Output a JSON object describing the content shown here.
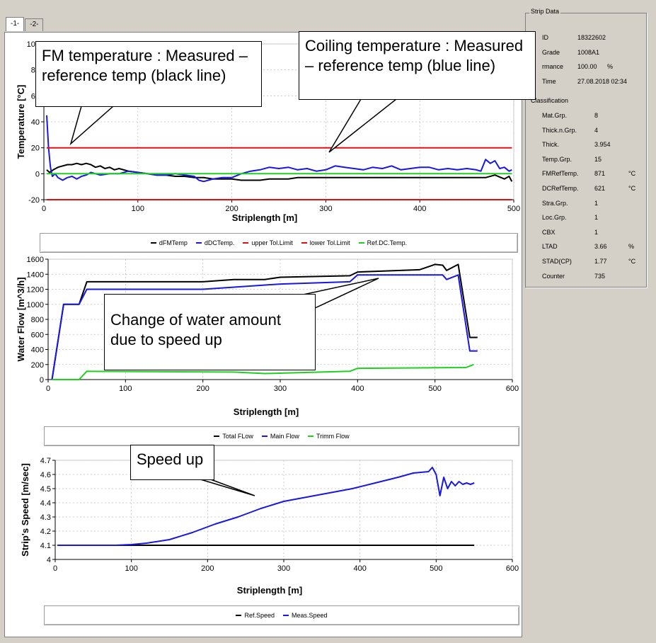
{
  "tabs": [
    {
      "label": "-1-",
      "active": true
    },
    {
      "label": "-2-",
      "active": false
    }
  ],
  "colors": {
    "black": "#000000",
    "blue": "#1818e0",
    "red": "#e01010",
    "green": "#20d020"
  },
  "strip_data": {
    "title": "Strip Data",
    "rows": [
      {
        "label": "ID",
        "value": "18322602",
        "unit": ""
      },
      {
        "label": "Grade",
        "value": "1008A1",
        "unit": ""
      },
      {
        "label": "rmance",
        "value": "100.00",
        "unit": "%"
      },
      {
        "label": "Time",
        "value": "27.08.2018 02:34",
        "unit": ""
      }
    ],
    "classification_title": "Classification",
    "classification": [
      {
        "label": "Mat.Grp.",
        "value": "8",
        "unit": ""
      },
      {
        "label": "Thick.n.Grp.",
        "value": "4",
        "unit": ""
      },
      {
        "label": "Thick.",
        "value": "3.954",
        "unit": ""
      },
      {
        "label": "Temp.Grp.",
        "value": "15",
        "unit": ""
      },
      {
        "label": "FMRefTemp.",
        "value": "871",
        "unit": "°C"
      },
      {
        "label": "DCRefTemp.",
        "value": "621",
        "unit": "°C"
      },
      {
        "label": "Stra.Grp.",
        "value": "1",
        "unit": ""
      },
      {
        "label": "Loc.Grp.",
        "value": "1",
        "unit": ""
      },
      {
        "label": "CBX",
        "value": "1",
        "unit": ""
      },
      {
        "label": "LTAD",
        "value": "3.66",
        "unit": "%"
      },
      {
        "label": "STAD(CP)",
        "value": "1.77",
        "unit": "°C"
      },
      {
        "label": "Counter",
        "value": "735",
        "unit": ""
      }
    ]
  },
  "callouts": {
    "fm_temp": "FM temperature : Measured – reference temp (black line)",
    "coiling_temp": "Coiling temperature : Measured – reference temp (blue line)",
    "water": "Change of water amount due to speed up",
    "speed": "Speed up"
  },
  "chart_data": [
    {
      "type": "line",
      "xlabel": "Striplength [m]",
      "ylabel": "Temperature [°C]",
      "xlim": [
        0,
        500
      ],
      "ylim": [
        -20,
        100
      ],
      "xticks": [
        0,
        100,
        200,
        300,
        400,
        500
      ],
      "yticks": [
        -20,
        0,
        20,
        40,
        60,
        80,
        100
      ],
      "legend": [
        "dFMTemp",
        "dDCTemp.",
        "upper Tol.Limit",
        "lower Tol.Limit",
        "Ref.DC.Temp."
      ],
      "series": [
        {
          "name": "dFMTemp",
          "color": "#000000",
          "x": [
            3,
            6,
            10,
            15,
            20,
            25,
            30,
            35,
            40,
            45,
            50,
            55,
            60,
            65,
            70,
            75,
            80,
            90,
            100,
            110,
            120,
            130,
            140,
            150,
            160,
            170,
            180,
            190,
            200,
            210,
            220,
            230,
            240,
            250,
            260,
            270,
            280,
            290,
            300,
            310,
            320,
            330,
            340,
            350,
            360,
            370,
            380,
            390,
            400,
            410,
            420,
            430,
            440,
            450,
            460,
            470,
            480,
            490,
            495,
            498
          ],
          "y": [
            3,
            1,
            3,
            5,
            6,
            7,
            7,
            8,
            7,
            8,
            7,
            5,
            6,
            4,
            5,
            3,
            4,
            2,
            1,
            0,
            -1,
            -1,
            -2,
            -2,
            -3,
            -3,
            -4,
            -4,
            -4,
            -5,
            -5,
            -5,
            -4,
            -4,
            -4,
            -3,
            -3,
            -3,
            -3,
            -3,
            -3,
            -3,
            -3,
            -3,
            -3,
            -3,
            -3,
            -3,
            -3,
            -3,
            -3,
            -3,
            -3,
            -3,
            -3,
            -3,
            -1,
            -4,
            -2,
            -6
          ]
        },
        {
          "name": "dDCTemp.",
          "color": "#1818e0",
          "x": [
            3,
            5,
            7,
            9,
            12,
            15,
            20,
            25,
            30,
            35,
            40,
            45,
            50,
            60,
            70,
            80,
            90,
            100,
            110,
            120,
            130,
            140,
            150,
            160,
            165,
            170,
            175,
            180,
            190,
            200,
            210,
            220,
            230,
            240,
            250,
            260,
            270,
            280,
            290,
            300,
            310,
            320,
            330,
            340,
            350,
            360,
            370,
            380,
            390,
            400,
            410,
            420,
            430,
            440,
            450,
            460,
            465,
            470,
            475,
            480,
            485,
            490,
            495,
            498
          ],
          "y": [
            45,
            20,
            5,
            -2,
            0,
            -3,
            -5,
            -3,
            -2,
            -4,
            -2,
            -1,
            1,
            -1,
            0,
            0,
            2,
            1,
            0,
            -1,
            -1,
            0,
            -1,
            -2,
            -5,
            -6,
            -5,
            -4,
            -3,
            -3,
            0,
            2,
            3,
            5,
            4,
            5,
            3,
            4,
            2,
            3,
            6,
            5,
            4,
            3,
            5,
            4,
            6,
            3,
            4,
            5,
            5,
            3,
            4,
            3,
            4,
            3,
            2,
            11,
            8,
            10,
            4,
            5,
            2,
            3
          ]
        },
        {
          "name": "upper Tol.Limit",
          "color": "#e01010",
          "x": [
            3,
            498
          ],
          "y": [
            20,
            20
          ]
        },
        {
          "name": "lower Tol.Limit",
          "color": "#e01010",
          "x": [
            3,
            498
          ],
          "y": [
            -20,
            -20
          ]
        },
        {
          "name": "Ref.DC.Temp.",
          "color": "#20d020",
          "x": [
            3,
            498
          ],
          "y": [
            0,
            0
          ]
        }
      ]
    },
    {
      "type": "line",
      "xlabel": "Striplength [m]",
      "ylabel": "Water Flow [m^3/h]",
      "xlim": [
        0,
        600
      ],
      "ylim": [
        0,
        1600
      ],
      "xticks": [
        0,
        100,
        200,
        300,
        400,
        500,
        600
      ],
      "yticks": [
        0,
        200,
        400,
        600,
        800,
        1000,
        1200,
        1400,
        1600
      ],
      "legend": [
        "Total FLow",
        "Main Flow",
        "Trimm Flow"
      ],
      "series": [
        {
          "name": "Total FLow",
          "color": "#000000",
          "x": [
            5,
            20,
            40,
            50,
            200,
            240,
            280,
            300,
            390,
            400,
            480,
            500,
            510,
            515,
            530,
            545,
            555
          ],
          "y": [
            0,
            1000,
            1000,
            1300,
            1300,
            1330,
            1330,
            1360,
            1380,
            1430,
            1460,
            1530,
            1520,
            1450,
            1530,
            560,
            560
          ]
        },
        {
          "name": "Main Flow",
          "color": "#1818e0",
          "x": [
            5,
            20,
            40,
            50,
            200,
            300,
            390,
            400,
            510,
            515,
            530,
            545,
            555
          ],
          "y": [
            0,
            1000,
            1000,
            1200,
            1200,
            1270,
            1300,
            1390,
            1390,
            1330,
            1390,
            380,
            380
          ]
        },
        {
          "name": "Trimm Flow",
          "color": "#20d020",
          "x": [
            5,
            40,
            50,
            240,
            280,
            390,
            400,
            540,
            550
          ],
          "y": [
            0,
            0,
            110,
            100,
            80,
            110,
            150,
            160,
            200
          ]
        }
      ]
    },
    {
      "type": "line",
      "xlabel": "Striplength [m]",
      "ylabel": "Strip's Speed [m/sec]",
      "xlim": [
        0,
        600
      ],
      "ylim": [
        4,
        4.7
      ],
      "xticks": [
        0,
        100,
        200,
        300,
        400,
        500,
        600
      ],
      "yticks": [
        4,
        4.1,
        4.2,
        4.3,
        4.4,
        4.5,
        4.6,
        4.7
      ],
      "legend": [
        "Ref.Speed",
        "Meas.Speed"
      ],
      "series": [
        {
          "name": "Ref.Speed",
          "color": "#000000",
          "x": [
            3,
            550
          ],
          "y": [
            4.1,
            4.1
          ]
        },
        {
          "name": "Meas.Speed",
          "color": "#1818e0",
          "x": [
            3,
            80,
            100,
            120,
            150,
            180,
            210,
            240,
            270,
            300,
            330,
            360,
            390,
            420,
            450,
            470,
            490,
            495,
            500,
            505,
            510,
            515,
            520,
            525,
            530,
            535,
            540,
            545,
            550
          ],
          "y": [
            4.1,
            4.1,
            4.105,
            4.115,
            4.14,
            4.19,
            4.25,
            4.3,
            4.36,
            4.41,
            4.44,
            4.47,
            4.5,
            4.54,
            4.58,
            4.61,
            4.62,
            4.65,
            4.6,
            4.45,
            4.58,
            4.5,
            4.55,
            4.52,
            4.55,
            4.53,
            4.54,
            4.53,
            4.54
          ]
        }
      ]
    }
  ]
}
